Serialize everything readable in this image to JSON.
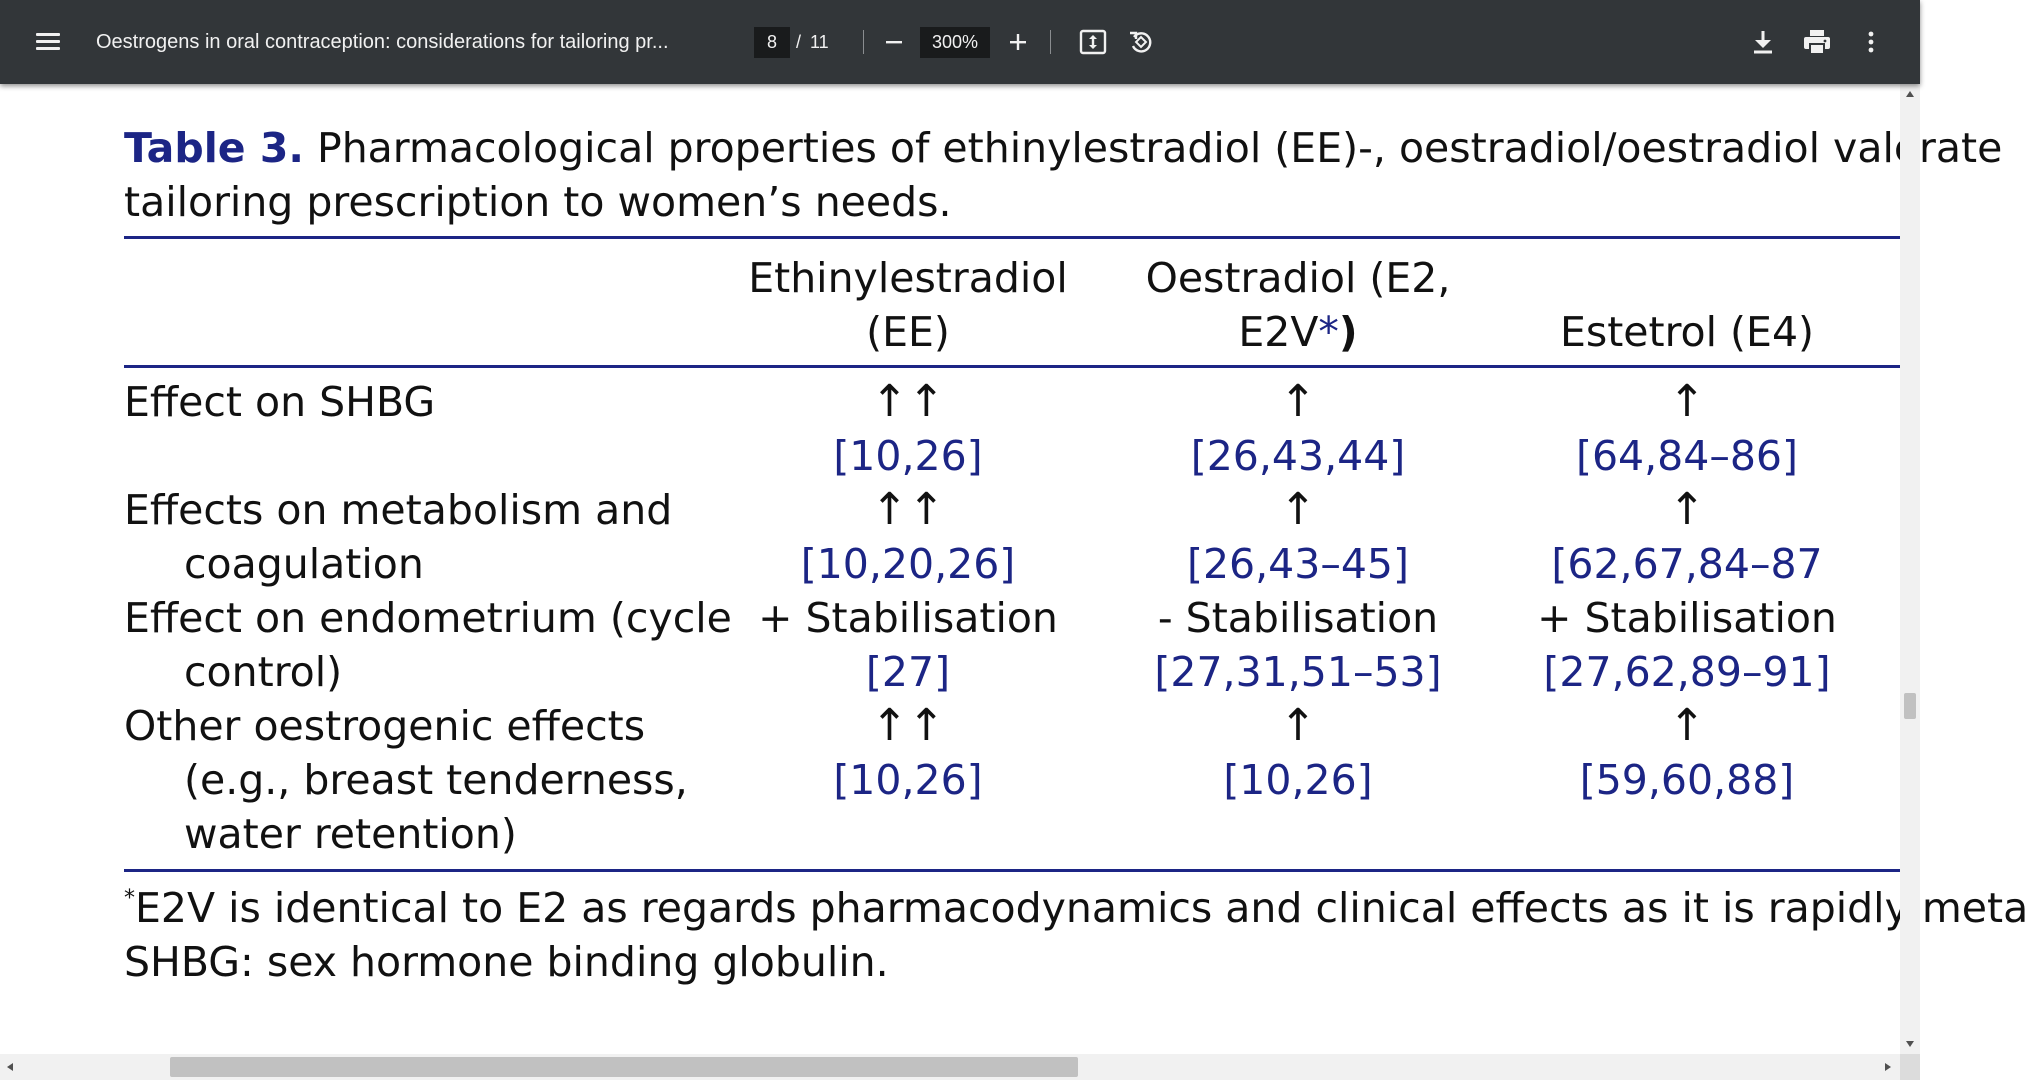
{
  "toolbar": {
    "title": "Oestrogens in oral contraception: considerations for tailoring pr...",
    "page_current": "8",
    "page_separator": "/",
    "page_total": "11",
    "zoom": "300%",
    "icons": [
      "menu-icon",
      "zoom-out-icon",
      "zoom-in-icon",
      "fit-page-icon",
      "rotate-icon",
      "download-icon",
      "print-icon",
      "more-vert-icon"
    ]
  },
  "table": {
    "caption_label": "Table 3.",
    "caption_line1": " Pharmacological properties of ethinylestradiol (EE)-, oestradiol/oestradiol valerate",
    "caption_line2": "tailoring prescription to women’s needs.",
    "headers": {
      "ee_line1": "Ethinylestradiol",
      "ee_line2": "(EE)",
      "e2_line1": "Oestradiol (E2,",
      "e2_line2a": "E2V",
      "e2_line2b": "*",
      "e2_line2c": ")",
      "e4": "Estetrol (E4)"
    },
    "rows": [
      {
        "label_line1": "Effect on SHBG",
        "ee_effect": "↑↑",
        "ee_refs": "[10,26]",
        "e2_effect": "↑",
        "e2_refs": "[26,43,44]",
        "e4_effect": "↑",
        "e4_refs": "[64,84–86]"
      },
      {
        "label_line1": "Effects on metabolism and",
        "label_line2": "coagulation",
        "ee_effect": "↑↑",
        "ee_refs": "[10,20,26]",
        "e2_effect": "↑",
        "e2_refs": "[26,43–45]",
        "e4_effect": "↑",
        "e4_refs": "[62,67,84–87"
      },
      {
        "label_line1": "Effect on endometrium (cycle",
        "label_line2": "control)",
        "ee_effect": "+ Stabilisation",
        "ee_refs": "[27]",
        "e2_effect": "- Stabilisation",
        "e2_refs": "[27,31,51–53]",
        "e4_effect": "+ Stabilisation",
        "e4_refs": "[27,62,89–91]"
      },
      {
        "label_line1": "Other oestrogenic effects",
        "label_line2": "(e.g., breast tenderness,",
        "label_line3": "water retention)",
        "ee_effect": "↑↑",
        "ee_refs": "[10,26]",
        "e2_effect": "↑",
        "e2_refs": "[10,26]",
        "e4_effect": "↑",
        "e4_refs": "[59,60,88]"
      }
    ],
    "footnote_mark": "*",
    "footnote_line1": "E2V is identical to E2 as regards pharmacodynamics and clinical effects as it is rapidly meta",
    "footnote_line2": "SHBG: sex hormone binding globulin."
  },
  "colors": {
    "toolbar_bg": "#323639",
    "accent_navy": "#1c2585",
    "text": "#111111"
  }
}
